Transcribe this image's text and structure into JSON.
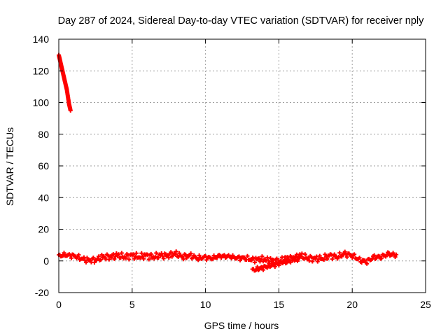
{
  "chart_data": {
    "type": "scatter",
    "title": "Day 287 of 2024, Sidereal Day-to-day VTEC variation (SDTVAR) for receiver nply",
    "xlabel": "GPS time / hours",
    "ylabel": "SDTVAR / TECUs",
    "xlim": [
      0,
      25
    ],
    "ylim": [
      -20,
      140
    ],
    "xticks": [
      0,
      5,
      10,
      15,
      20,
      25
    ],
    "yticks": [
      -20,
      0,
      20,
      40,
      60,
      80,
      100,
      120,
      140
    ],
    "grid": true,
    "legend": "none",
    "marker": "plus",
    "color": "#ff0000",
    "series": [
      {
        "x": [
          0.0,
          0.05,
          0.1,
          0.15,
          0.2,
          0.25,
          0.3,
          0.35,
          0.4,
          0.45,
          0.5,
          0.55,
          0.6,
          0.65,
          0.7,
          0.75,
          0.8
        ],
        "y": [
          130,
          128,
          126,
          124,
          122,
          120,
          118,
          116,
          114,
          112,
          110,
          108,
          105,
          102,
          99,
          97,
          95
        ]
      },
      {
        "x": [
          0.0,
          0.5,
          1.0,
          1.5,
          2.0,
          2.5,
          3.0,
          3.5,
          4.0,
          4.5,
          5.0,
          5.5,
          6.0,
          6.5,
          7.0,
          7.5,
          8.0,
          8.5,
          9.0,
          9.5,
          10.0,
          10.5,
          11.0,
          11.5,
          12.0,
          12.5,
          13.0,
          13.5,
          14.0,
          14.5,
          15.0,
          15.5,
          16.0,
          16.5,
          17.0,
          17.5,
          18.0,
          18.5,
          19.0,
          19.5,
          20.0,
          20.5,
          21.0,
          21.5,
          22.0,
          22.5,
          23.0
        ],
        "y": [
          3,
          4,
          3,
          2,
          0,
          1,
          2,
          3,
          3,
          3,
          3,
          3,
          3,
          3,
          3,
          4,
          4,
          3,
          3,
          2,
          2,
          2,
          3,
          3,
          2,
          2,
          1,
          1,
          1,
          0,
          0,
          1,
          2,
          3,
          2,
          1,
          2,
          3,
          3,
          4,
          4,
          0,
          0,
          2,
          3,
          4,
          4
        ]
      },
      {
        "x": [
          13.2,
          13.6,
          14.0,
          14.4,
          14.8,
          15.2,
          15.6,
          16.0,
          16.4
        ],
        "y": [
          -6,
          -5,
          -4,
          -3,
          -2,
          -1,
          0,
          1,
          2
        ]
      }
    ]
  }
}
